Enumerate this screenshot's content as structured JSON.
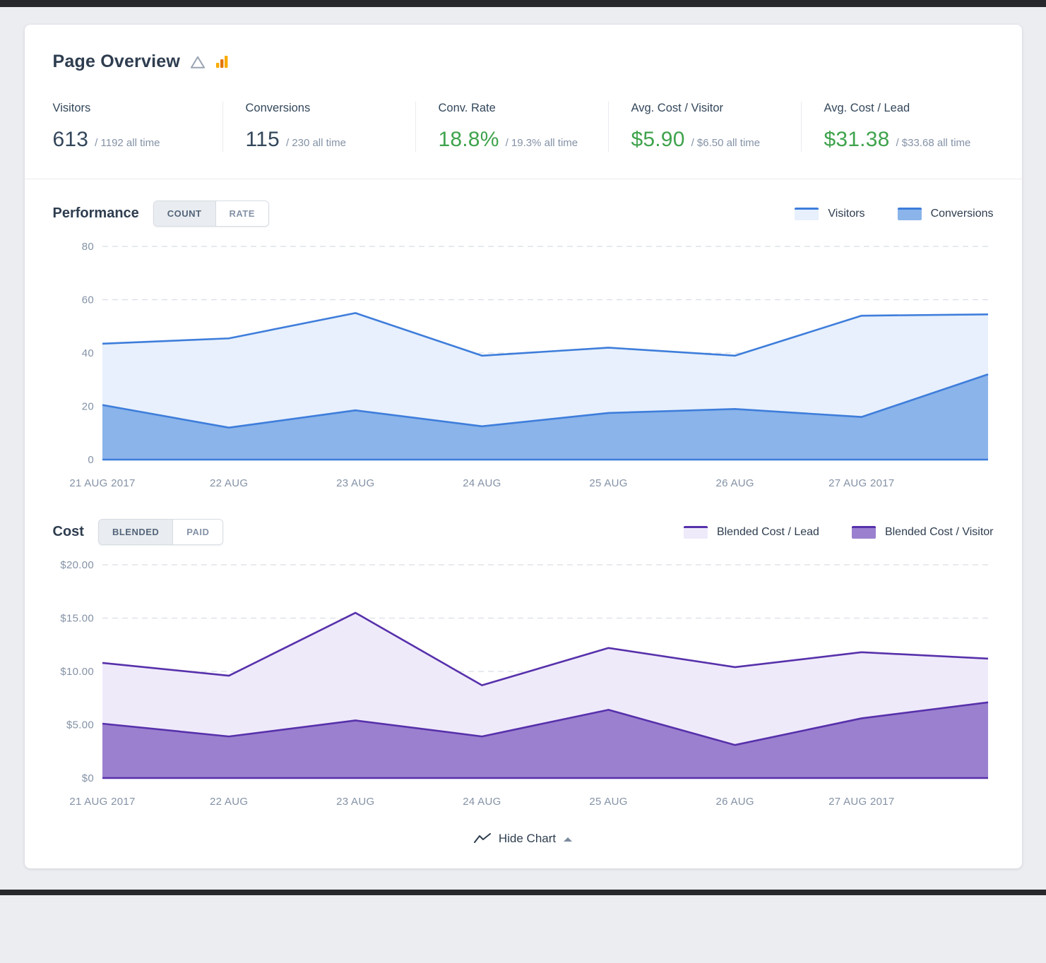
{
  "page": {
    "title": "Page Overview"
  },
  "stats": {
    "items": [
      {
        "label": "Visitors",
        "value": "613",
        "alltime": "/ 1192 all time",
        "color": "dark"
      },
      {
        "label": "Conversions",
        "value": "115",
        "alltime": "/ 230 all time",
        "color": "dark"
      },
      {
        "label": "Conv. Rate",
        "value": "18.8%",
        "alltime": "/ 19.3% all time",
        "color": "green"
      },
      {
        "label": "Avg. Cost / Visitor",
        "value": "$5.90",
        "alltime": "/ $6.50 all time",
        "color": "green"
      },
      {
        "label": "Avg. Cost / Lead",
        "value": "$31.38",
        "alltime": "/ $33.68 all time",
        "color": "green"
      }
    ]
  },
  "sections": {
    "performance": {
      "title": "Performance",
      "toggle": {
        "options": [
          "COUNT",
          "RATE"
        ],
        "selected": "COUNT"
      },
      "legend": [
        {
          "label": "Visitors",
          "fill": "#e7f0fc",
          "stroke": "#3e7ddb"
        },
        {
          "label": "Conversions",
          "fill": "#8ab4ea",
          "stroke": "#3e7ddb"
        }
      ]
    },
    "cost": {
      "title": "Cost",
      "toggle": {
        "options": [
          "BLENDED",
          "PAID"
        ],
        "selected": "BLENDED"
      },
      "legend": [
        {
          "label": "Blended Cost / Lead",
          "fill": "#efeafa",
          "stroke": "#5731ab"
        },
        {
          "label": "Blended Cost / Visitor",
          "fill": "#9b80cf",
          "stroke": "#5731ab"
        }
      ]
    }
  },
  "footer": {
    "hide_chart_label": "Hide Chart"
  },
  "colors": {
    "green": "#3fa34d",
    "accent_blue": "#3e7ddb",
    "accent_purple": "#5731ab"
  },
  "chart_data": [
    {
      "type": "area",
      "title": "Performance",
      "x_labels": [
        "21 AUG 2017",
        "22 AUG",
        "23 AUG",
        "24 AUG",
        "25 AUG",
        "26 AUG",
        "27 AUG 2017"
      ],
      "series": [
        {
          "name": "Visitors",
          "values": [
            43.5,
            45.5,
            55,
            39,
            42,
            39,
            54,
            54.5
          ],
          "fill": "#e7f0fc",
          "stroke": "#3e7ddb"
        },
        {
          "name": "Conversions",
          "values": [
            20.5,
            12,
            18.5,
            12.5,
            17.5,
            19,
            16,
            32
          ],
          "fill": "#8ab4ea",
          "stroke": "#3e7ddb"
        }
      ],
      "ylim": [
        0,
        80
      ],
      "yticks": [
        {
          "v": 0,
          "label": "0"
        },
        {
          "v": 20,
          "label": "20"
        },
        {
          "v": 40,
          "label": "40"
        },
        {
          "v": 60,
          "label": "60"
        },
        {
          "v": 80,
          "label": "80"
        }
      ],
      "baseline_color": "#3e7ddb",
      "grid": true,
      "legend_position": "top-right"
    },
    {
      "type": "area",
      "title": "Cost",
      "x_labels": [
        "21 AUG 2017",
        "22 AUG",
        "23 AUG",
        "24 AUG",
        "25 AUG",
        "26 AUG",
        "27 AUG 2017"
      ],
      "series": [
        {
          "name": "Blended Cost / Lead",
          "values": [
            10.8,
            9.6,
            15.5,
            8.7,
            12.2,
            10.4,
            11.8,
            11.2
          ],
          "fill": "#efeafa",
          "stroke": "#5731ab"
        },
        {
          "name": "Blended Cost / Visitor",
          "values": [
            5.1,
            3.9,
            5.4,
            3.9,
            6.4,
            3.1,
            5.6,
            7.1
          ],
          "fill": "#9b80cf",
          "stroke": "#5731ab"
        }
      ],
      "ylim": [
        0,
        20
      ],
      "yticks": [
        {
          "v": 0,
          "label": "$0"
        },
        {
          "v": 5,
          "label": "$5.00"
        },
        {
          "v": 10,
          "label": "$10.00"
        },
        {
          "v": 15,
          "label": "$15.00"
        },
        {
          "v": 20,
          "label": "$20.00"
        }
      ],
      "baseline_color": "#5731ab",
      "grid": true,
      "legend_position": "top-right"
    }
  ]
}
